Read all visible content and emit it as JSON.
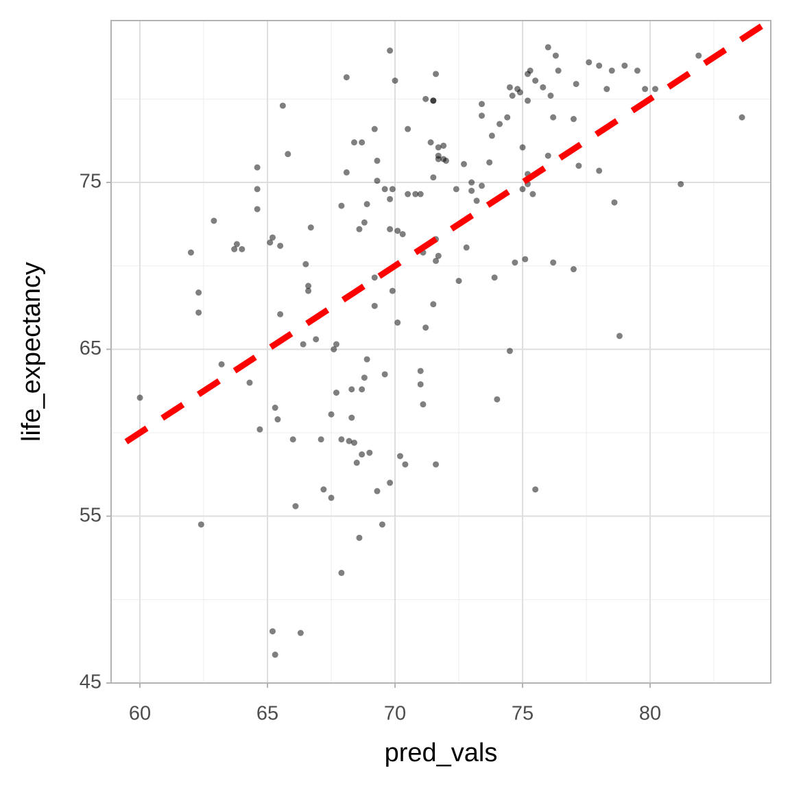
{
  "chart_data": {
    "type": "scatter",
    "x_label": "pred_vals",
    "y_label": "life_expectancy",
    "xlim": [
      58.87,
      84.73
    ],
    "ylim": [
      45,
      84.7
    ],
    "xticks": [
      60,
      65,
      70,
      75,
      80
    ],
    "yticks": [
      45,
      55,
      65,
      75
    ],
    "x_minor_grid": [
      62.5,
      67.5,
      72.5,
      77.5,
      82.5
    ],
    "y_minor_grid": [
      50,
      60,
      70,
      80
    ],
    "grid": true,
    "point_color": "#000000",
    "point_opacity": 0.5,
    "x": [
      60.0,
      62.0,
      62.3,
      62.3,
      62.4,
      62.9,
      63.2,
      63.7,
      63.8,
      64.0,
      64.3,
      64.6,
      64.6,
      64.6,
      64.7,
      65.1,
      65.2,
      65.2,
      65.3,
      65.3,
      65.4,
      65.5,
      65.5,
      65.6,
      65.8,
      66.0,
      66.1,
      66.3,
      66.4,
      66.5,
      66.6,
      66.6,
      66.7,
      66.9,
      67.1,
      67.2,
      67.5,
      67.5,
      67.6,
      67.7,
      67.7,
      67.9,
      67.9,
      67.9,
      68.1,
      68.1,
      68.2,
      68.3,
      68.3,
      68.4,
      68.4,
      68.5,
      68.6,
      68.6,
      68.7,
      68.7,
      68.7,
      68.8,
      68.8,
      68.9,
      68.9,
      69.0,
      69.2,
      69.2,
      69.2,
      69.3,
      69.3,
      69.3,
      69.5,
      69.6,
      69.6,
      69.8,
      69.8,
      69.8,
      69.8,
      69.9,
      69.9,
      70.0,
      70.1,
      70.1,
      70.2,
      70.3,
      70.4,
      70.5,
      70.5,
      70.8,
      71.0,
      71.0,
      71.0,
      71.1,
      71.1,
      71.2,
      71.2,
      71.4,
      71.5,
      71.5,
      71.5,
      71.5,
      71.6,
      71.6,
      71.6,
      71.6,
      71.7,
      71.7,
      71.7,
      71.7,
      71.9,
      71.9,
      72.0,
      72.4,
      72.5,
      72.7,
      72.8,
      73.0,
      73.0,
      73.2,
      73.4,
      73.4,
      73.4,
      73.7,
      73.8,
      73.9,
      74.0,
      74.1,
      74.4,
      74.5,
      74.5,
      74.6,
      74.7,
      74.8,
      74.9,
      75.0,
      75.0,
      75.1,
      75.2,
      75.2,
      75.2,
      75.2,
      75.3,
      75.4,
      75.5,
      75.5,
      75.8,
      76.0,
      76.0,
      76.1,
      76.2,
      76.2,
      76.3,
      76.4,
      77.0,
      77.0,
      77.1,
      77.2,
      77.6,
      78.0,
      78.0,
      78.3,
      78.5,
      78.6,
      78.8,
      79.0,
      79.5,
      79.8,
      80.2,
      81.2,
      81.9,
      83.6
    ],
    "y": [
      62.1,
      70.8,
      68.4,
      67.2,
      54.5,
      72.7,
      64.1,
      71.0,
      71.3,
      71.0,
      63.0,
      75.9,
      74.6,
      73.4,
      60.2,
      71.4,
      71.7,
      48.1,
      61.5,
      46.7,
      60.8,
      71.2,
      67.1,
      79.6,
      76.7,
      59.6,
      55.6,
      48.0,
      65.3,
      70.1,
      68.5,
      68.8,
      72.3,
      65.6,
      59.6,
      56.6,
      61.1,
      56.1,
      65.0,
      65.3,
      62.4,
      59.6,
      73.6,
      51.6,
      81.3,
      75.6,
      59.5,
      62.6,
      60.9,
      77.4,
      59.4,
      58.2,
      53.7,
      72.2,
      62.6,
      77.4,
      58.7,
      63.3,
      72.6,
      73.7,
      64.4,
      58.8,
      69.3,
      67.6,
      78.2,
      76.3,
      56.5,
      75.1,
      54.5,
      63.5,
      74.6,
      74.0,
      72.2,
      57.0,
      82.9,
      68.5,
      74.6,
      81.1,
      72.1,
      66.6,
      58.6,
      71.9,
      58.1,
      78.2,
      74.3,
      74.3,
      74.3,
      63.7,
      62.9,
      70.8,
      61.7,
      66.3,
      80.0,
      77.4,
      79.9,
      79.9,
      67.7,
      75.3,
      81.5,
      58.1,
      71.6,
      70.3,
      77.1,
      70.6,
      76.6,
      76.4,
      76.4,
      77.2,
      76.3,
      74.6,
      69.1,
      76.1,
      71.1,
      75.0,
      74.5,
      73.9,
      74.8,
      79.7,
      79.0,
      76.2,
      77.8,
      69.3,
      62.0,
      78.5,
      78.9,
      64.9,
      80.7,
      80.2,
      70.2,
      80.6,
      80.4,
      74.6,
      77.1,
      70.4,
      75.5,
      74.9,
      79.9,
      81.5,
      81.7,
      74.3,
      56.6,
      81.1,
      80.7,
      76.6,
      83.1,
      80.2,
      78.9,
      70.2,
      82.6,
      81.7,
      78.8,
      69.8,
      80.9,
      76.0,
      82.2,
      75.7,
      82.0,
      80.6,
      81.7,
      73.8,
      65.8,
      82.0,
      81.7,
      80.6,
      80.6,
      74.9,
      82.6,
      78.9
    ],
    "reference_line": {
      "x": [
        59.46,
        84.73
      ],
      "y": [
        59.46,
        84.73
      ],
      "color": "#ff0000",
      "dashed": true
    }
  }
}
